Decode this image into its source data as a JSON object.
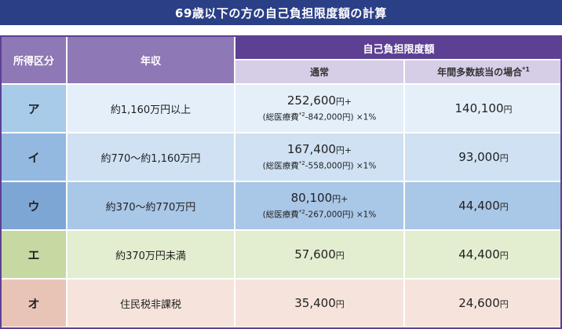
{
  "title": "69歳以下の方の自己負担限度額の計算",
  "headers": {
    "income_category": "所得区分",
    "annual_income": "年収",
    "limit_group": "自己負担限度額",
    "normal": "通常",
    "multiple": "年間多数該当の場合",
    "multiple_note": "*1"
  },
  "rows": [
    {
      "category": "ア",
      "income": "約1,160万円以上",
      "normal_amount": "252,600",
      "normal_unit": "円+",
      "normal_formula": "(総医療費",
      "normal_formula_note": "*2",
      "normal_formula_rest": "-842,000円) ×1%",
      "multiple_amount": "140,100",
      "multiple_unit": "円"
    },
    {
      "category": "イ",
      "income": "約770〜約1,160万円",
      "normal_amount": "167,400",
      "normal_unit": "円+",
      "normal_formula": "(総医療費",
      "normal_formula_note": "*2",
      "normal_formula_rest": "-558,000円) ×1%",
      "multiple_amount": "93,000",
      "multiple_unit": "円"
    },
    {
      "category": "ウ",
      "income": "約370〜約770万円",
      "normal_amount": "80,100",
      "normal_unit": "円+",
      "normal_formula": "(総医療費",
      "normal_formula_note": "*2",
      "normal_formula_rest": "-267,000円) ×1%",
      "multiple_amount": "44,400",
      "multiple_unit": "円"
    },
    {
      "category": "エ",
      "income": "約370万円未満",
      "normal_amount": "57,600",
      "normal_unit": "円",
      "multiple_amount": "44,400",
      "multiple_unit": "円"
    },
    {
      "category": "オ",
      "income": "住民税非課税",
      "normal_amount": "35,400",
      "normal_unit": "円",
      "multiple_amount": "24,600",
      "multiple_unit": "円"
    }
  ],
  "colors": {
    "title_bg": "#2b3f87",
    "header_dark": "#5d3f93",
    "header_mid": "#8e78b5",
    "header_light": "#d6cde6"
  }
}
